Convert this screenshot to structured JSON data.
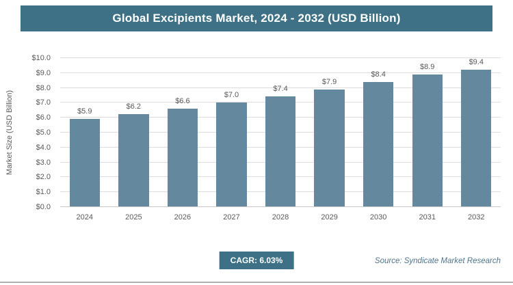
{
  "colors": {
    "title_bg": "#3e7186",
    "bar": "#64899e",
    "badge_bg": "#3e7186",
    "grid": "#dcdcdc",
    "source_text": "#50748a"
  },
  "chart_data": {
    "type": "bar",
    "title": "Global Excipients Market, 2024 - 2032 (USD Billion)",
    "categories": [
      "2024",
      "2025",
      "2026",
      "2027",
      "2028",
      "2029",
      "2030",
      "2031",
      "2032"
    ],
    "values": [
      5.9,
      6.2,
      6.6,
      7.0,
      7.4,
      7.9,
      8.4,
      8.9,
      9.4
    ],
    "xlabel": "",
    "ylabel": "Market Size (USD Billion)",
    "ylim": [
      0,
      10
    ],
    "ytick_step": 1,
    "value_prefix": "$",
    "grid": true,
    "legend_position": "none"
  },
  "footer": {
    "cagr_label": "CAGR: 6.03%",
    "source": "Source: Syndicate Market Research"
  }
}
